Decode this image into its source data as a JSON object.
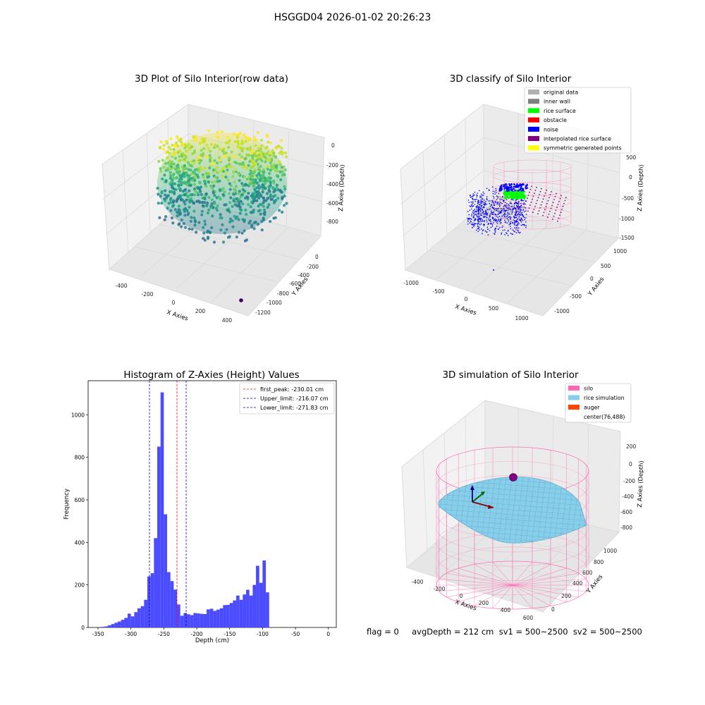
{
  "suptitle": "HSGGD04 2026-01-02 20:26:23",
  "status_text": "flag = 0     avgDepth = 212 cm  sv1 = 500~2500  sv2 = 500~2500",
  "colors": {
    "original": "#b0b0b0",
    "wall": "#808080",
    "rice": "#00ff00",
    "obstacle": "#ff0000",
    "noise": "#0000ff",
    "interp": "#800080",
    "symmetric": "#ffff00",
    "silo": "#ff69b4",
    "rice_sim": "#87ceeb",
    "auger": "#ff4500",
    "hist_bar": "#4b4bff",
    "peak_line": "#ff0000",
    "limit_line": "#0000cc"
  },
  "chart_data": [
    {
      "type": "scatter3d",
      "title": "3D Plot of Silo Interior(row data)",
      "xlabel": "X Axies",
      "ylabel": "Y Axies",
      "zlabel": "Z Axies (Depth)",
      "xticks": [
        "-400",
        "-200",
        "0",
        "200",
        "400"
      ],
      "yticks": [
        "0",
        "-200",
        "-400",
        "-600",
        "-800",
        "-1000",
        "-1200"
      ],
      "zticks": [
        "0",
        "-200",
        "-400",
        "-600",
        "-800"
      ],
      "xlim": [
        -450,
        450
      ],
      "ylim": [
        -1250,
        50
      ],
      "zlim": [
        -900,
        50
      ],
      "colormap": "viridis",
      "outlier_point": {
        "x": 350,
        "y": -1200,
        "z": -900
      }
    },
    {
      "type": "scatter3d",
      "title": "3D classify of Silo Interior",
      "xlabel": "X Axies",
      "ylabel": "Y Axies",
      "zlabel": "Z Axies (Depth)",
      "xticks": [
        "-1000",
        "-500",
        "0",
        "500",
        "1000"
      ],
      "yticks": [
        "-1000",
        "-500",
        "0",
        "500",
        "1000"
      ],
      "zticks": [
        "500",
        "0",
        "-500",
        "-1000",
        "-1500"
      ],
      "xlim": [
        -1100,
        1100
      ],
      "ylim": [
        -1100,
        1100
      ],
      "zlim": [
        -1600,
        600
      ],
      "legend_position": "upper-right",
      "legend": [
        {
          "label": "original data",
          "color_key": "original"
        },
        {
          "label": "inner wall",
          "color_key": "wall"
        },
        {
          "label": "rice surface",
          "color_key": "rice"
        },
        {
          "label": "obstacle",
          "color_key": "obstacle"
        },
        {
          "label": "noise",
          "color_key": "noise"
        },
        {
          "label": "interpolated rice surface",
          "color_key": "interp"
        },
        {
          "label": "symmetric generated points",
          "color_key": "symmetric"
        }
      ]
    },
    {
      "type": "bar",
      "title": "Histogram of Z-Axies (Height) Values",
      "xlabel": "Depth (cm)",
      "ylabel": "Frequency",
      "xlim": [
        -365,
        12
      ],
      "ylim": [
        0,
        1160
      ],
      "xticks": [
        -350,
        -300,
        -250,
        -200,
        -150,
        -100,
        -50,
        0
      ],
      "yticks": [
        0,
        200,
        400,
        600,
        800,
        1000
      ],
      "bin_width": 5,
      "bin_starts": [
        -350,
        -345,
        -340,
        -335,
        -330,
        -325,
        -320,
        -315,
        -310,
        -305,
        -300,
        -295,
        -290,
        -285,
        -280,
        -275,
        -270,
        -265,
        -260,
        -255,
        -250,
        -245,
        -240,
        -235,
        -230,
        -225,
        -220,
        -215,
        -210,
        -205,
        -200,
        -195,
        -190,
        -185,
        -180,
        -175,
        -170,
        -165,
        -160,
        -155,
        -150,
        -145,
        -140,
        -135,
        -130,
        -125,
        -120,
        -115,
        -110,
        -105,
        -100,
        -95,
        -90,
        -85,
        -80,
        -75,
        -70,
        -65,
        -60,
        -55,
        -50,
        -45,
        -40,
        -35,
        -30,
        -25,
        -20,
        -15,
        -10,
        -5
      ],
      "values": [
        2,
        3,
        5,
        10,
        16,
        22,
        28,
        36,
        45,
        65,
        52,
        72,
        90,
        100,
        130,
        240,
        255,
        420,
        850,
        1105,
        532,
        260,
        218,
        178,
        108,
        55,
        68,
        62,
        58,
        68,
        66,
        64,
        63,
        85,
        88,
        78,
        84,
        90,
        105,
        106,
        115,
        127,
        150,
        130,
        155,
        177,
        150,
        200,
        290,
        210,
        315,
        165,
        2,
        0,
        0,
        0,
        0,
        0,
        0,
        0,
        0,
        0,
        0,
        0,
        0,
        0,
        0,
        0,
        0,
        0
      ],
      "reference_lines": [
        {
          "label": "first_peak: -230.01 cm",
          "x": -230.01,
          "color_key": "peak_line"
        },
        {
          "label": "Upper_limit: -216.07 cm",
          "x": -216.07,
          "color_key": "limit_line"
        },
        {
          "label": "Lower_limit: -271.83 cm",
          "x": -271.83,
          "color_key": "limit_line"
        }
      ],
      "legend_position": "upper-right"
    },
    {
      "type": "surface3d",
      "title": "3D simulation of Silo Interior",
      "xlabel": "X Axies",
      "ylabel": "Y Axies",
      "zlabel": "Z Axies (Depth)",
      "xticks": [
        "-400",
        "-200",
        "0",
        "200",
        "400",
        "600"
      ],
      "yticks": [
        "0",
        "200",
        "400",
        "600",
        "800",
        "1000"
      ],
      "zticks": [
        "200",
        "0",
        "-200",
        "-400",
        "-600",
        "-800"
      ],
      "xlim": [
        -500,
        700
      ],
      "ylim": [
        -50,
        1050
      ],
      "zlim": [
        -900,
        300
      ],
      "legend_position": "upper-right",
      "legend": [
        {
          "label": "silo",
          "color_key": "silo"
        },
        {
          "label": "rice simulation",
          "color_key": "rice_sim"
        },
        {
          "label": "auger",
          "color_key": "auger"
        },
        {
          "label": "center(76,488)",
          "color_key": ""
        }
      ]
    }
  ]
}
